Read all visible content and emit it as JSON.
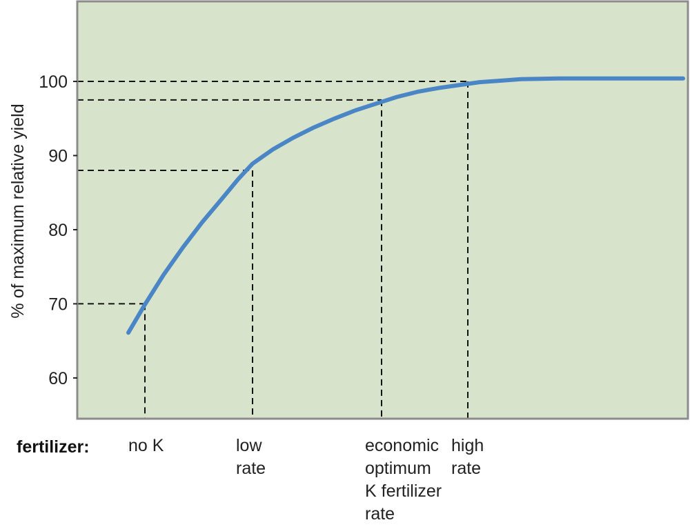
{
  "chart_data": {
    "type": "line",
    "ylabel": "% of maximum relative yield",
    "ylim": [
      54.5,
      110.8
    ],
    "yticks": [
      60,
      70,
      80,
      90,
      100
    ],
    "grid": false,
    "colors": {
      "background": "#d8e3cc",
      "line": "#4a86c5",
      "frame": "#8c8c8c",
      "dashes": "#111111"
    },
    "series": [
      {
        "values": [
          66.1,
          69.9,
          73.9,
          77.6,
          81.0,
          84.1,
          86.8,
          88.9,
          90.8,
          92.4,
          93.8,
          95.0,
          96.1,
          97.0,
          97.9,
          98.6,
          99.1,
          99.5,
          99.9,
          100.1,
          100.3,
          100.4,
          100.4,
          100.4
        ]
      }
    ],
    "row_label": "fertilizer:",
    "markers": [
      {
        "id": "no-k",
        "label_lines": [
          "no K"
        ],
        "y": 70
      },
      {
        "id": "low-rate",
        "label_lines": [
          "low",
          "rate"
        ],
        "y": 88
      },
      {
        "id": "economic-optimum",
        "label_lines": [
          "economic",
          "optimum",
          "K fertilizer",
          "rate"
        ],
        "y": 97.5
      },
      {
        "id": "high-rate",
        "label_lines": [
          "high",
          "rate"
        ],
        "y": 100
      }
    ]
  }
}
